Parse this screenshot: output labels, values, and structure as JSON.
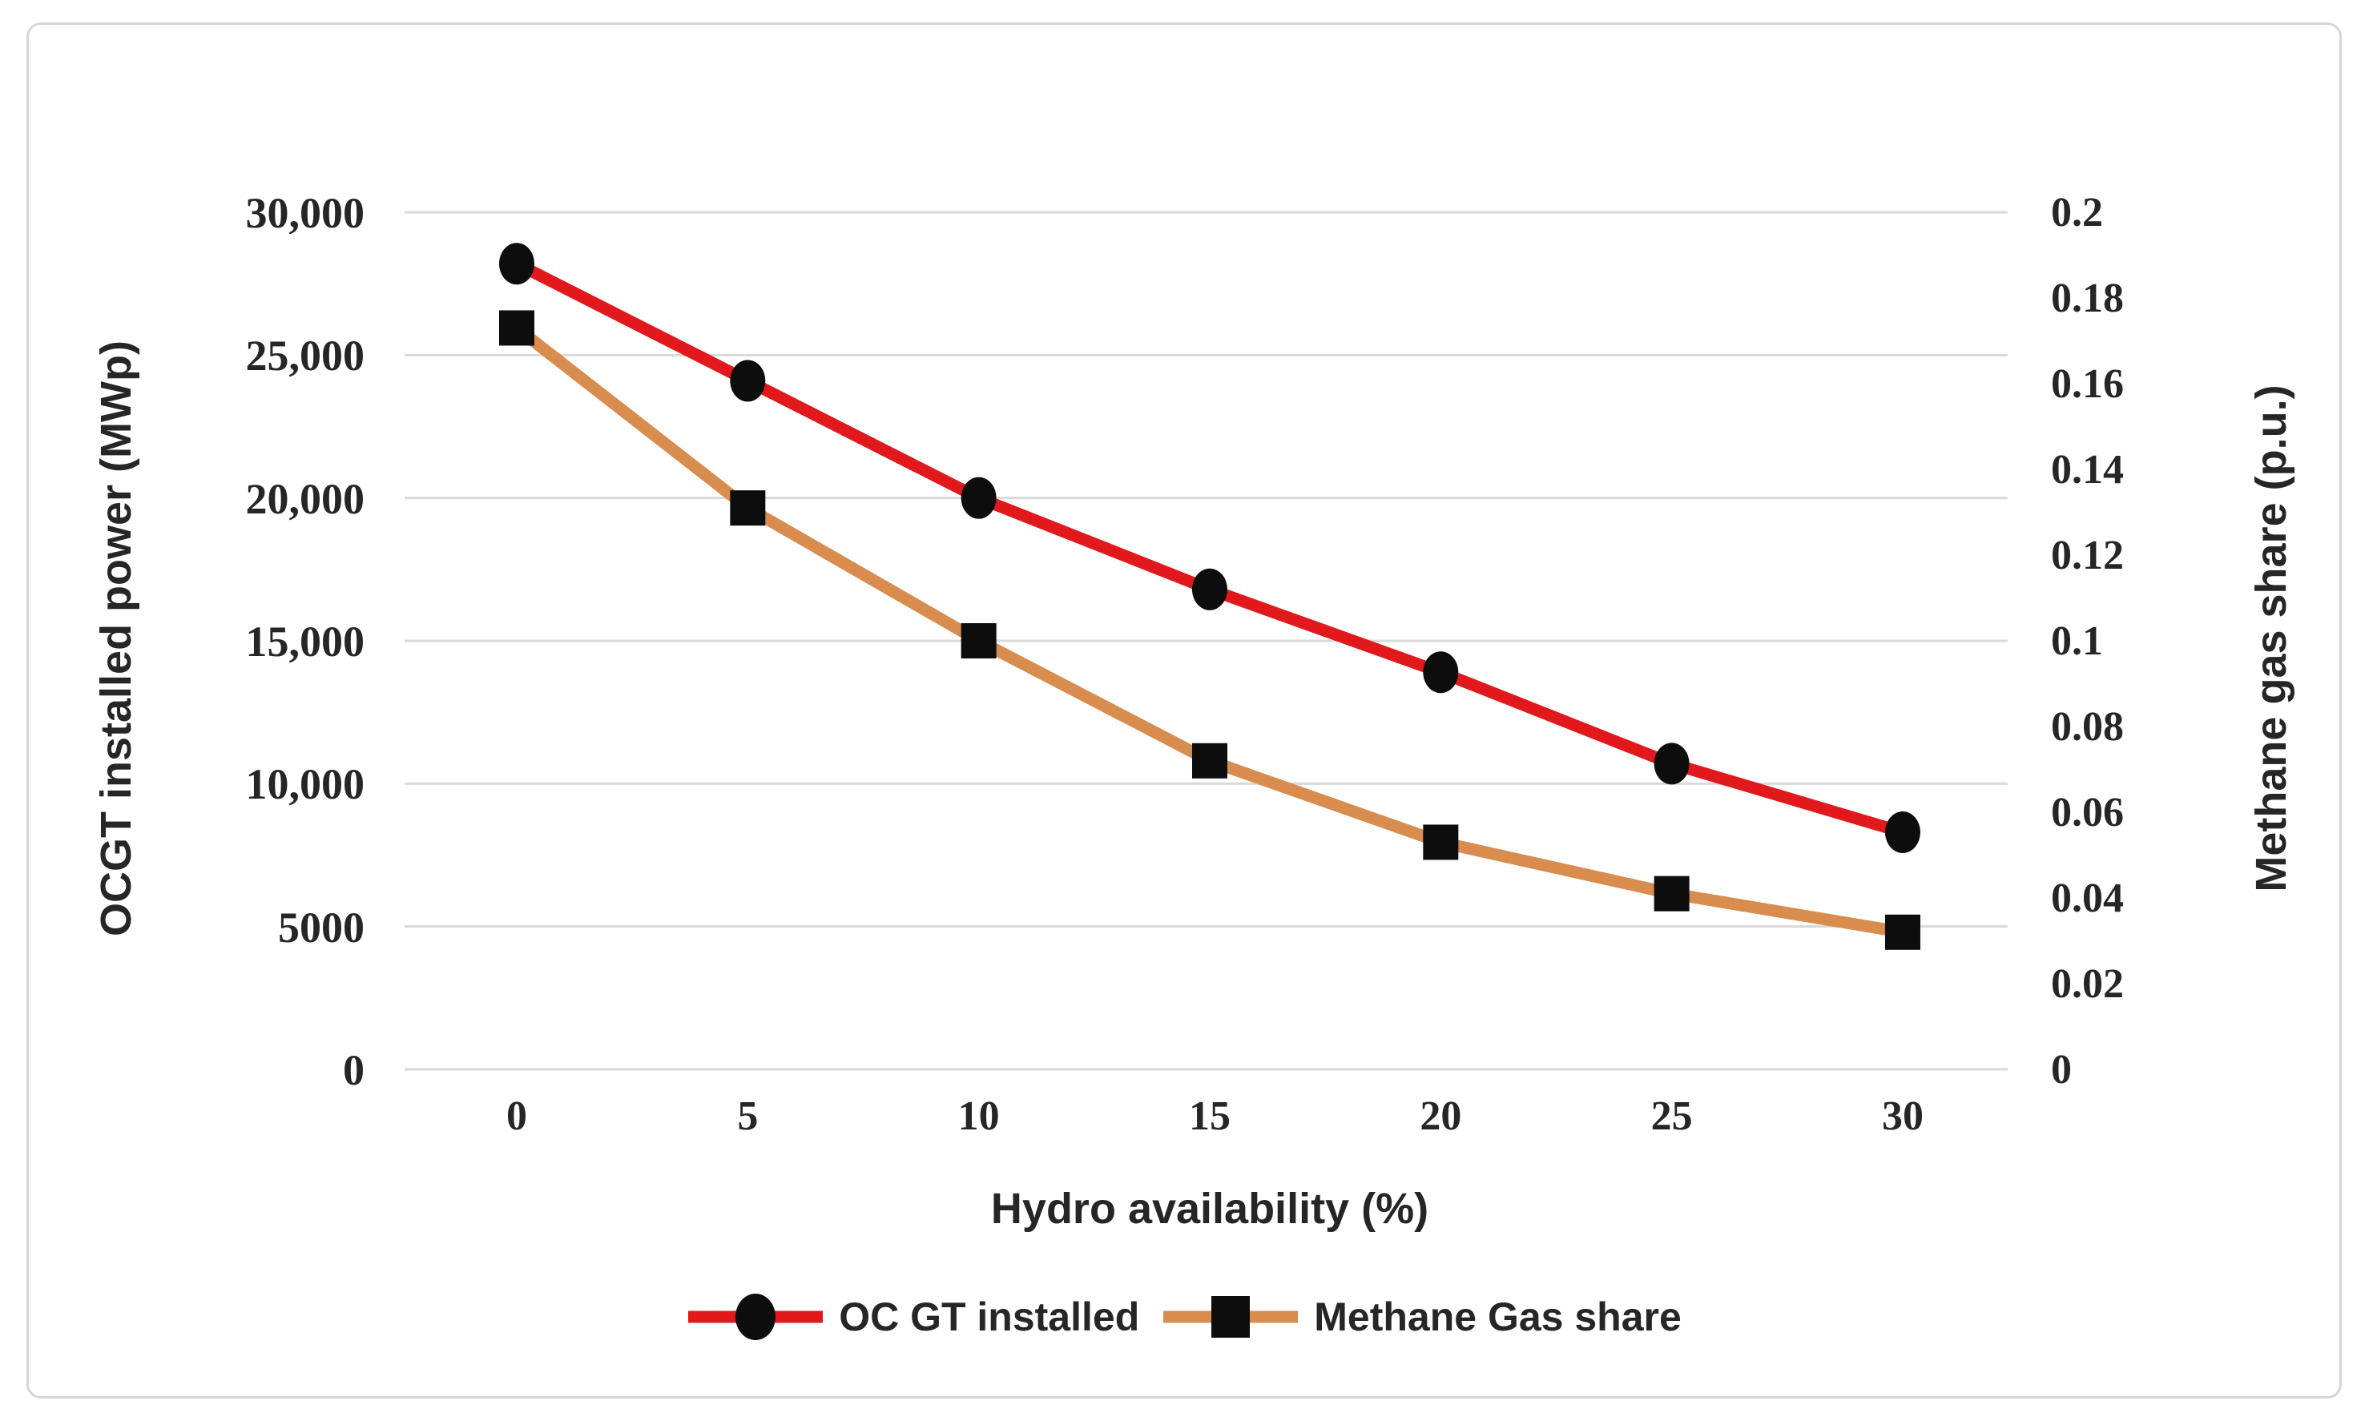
{
  "chart_data": {
    "type": "line",
    "title": "",
    "x": [
      0,
      5,
      10,
      15,
      20,
      25,
      30
    ],
    "x_tick_labels": [
      "0",
      "5",
      "10",
      "15",
      "20",
      "25",
      "30"
    ],
    "xlabel": "Hydro availability (%)",
    "ylabel_left": "OCGT installed power (MWp)",
    "ylabel_right": "Methane gas share (p.u.)",
    "left_axis": {
      "min": 0,
      "max": 30000,
      "tick_labels": [
        "30,000",
        "25,000",
        "20,000",
        "15,000",
        "10,000",
        "5000",
        "0"
      ],
      "tick_values": [
        30000,
        25000,
        20000,
        15000,
        10000,
        5000,
        0
      ]
    },
    "right_axis": {
      "min": 0,
      "max": 0.2,
      "tick_labels": [
        "0.2",
        "0.18",
        "0.16",
        "0.14",
        "0.12",
        "0.1",
        "0.08",
        "0.06",
        "0.04",
        "0.02",
        "0"
      ],
      "tick_values": [
        0.2,
        0.18,
        0.16,
        0.14,
        0.12,
        0.1,
        0.08,
        0.06,
        0.04,
        0.02,
        0
      ]
    },
    "grid": "horizontal-only",
    "legend_position": "bottom",
    "series": [
      {
        "name": "OC GT installed",
        "axis": "left",
        "color": "#e2191c",
        "marker": "circle",
        "marker_color": "#0d0d0d",
        "values": [
          28200,
          24100,
          20000,
          16800,
          13900,
          10700,
          8300
        ]
      },
      {
        "name": "Methane Gas share",
        "axis": "right",
        "color": "#d88c4e",
        "marker": "square",
        "marker_color": "#0d0d0d",
        "values": [
          0.173,
          0.131,
          0.1,
          0.072,
          0.053,
          0.041,
          0.032
        ]
      }
    ],
    "colors": {
      "gridline": "#d9d9d9",
      "text": "#262626",
      "frame_border": "#d6d6d6",
      "background": "#ffffff"
    }
  }
}
